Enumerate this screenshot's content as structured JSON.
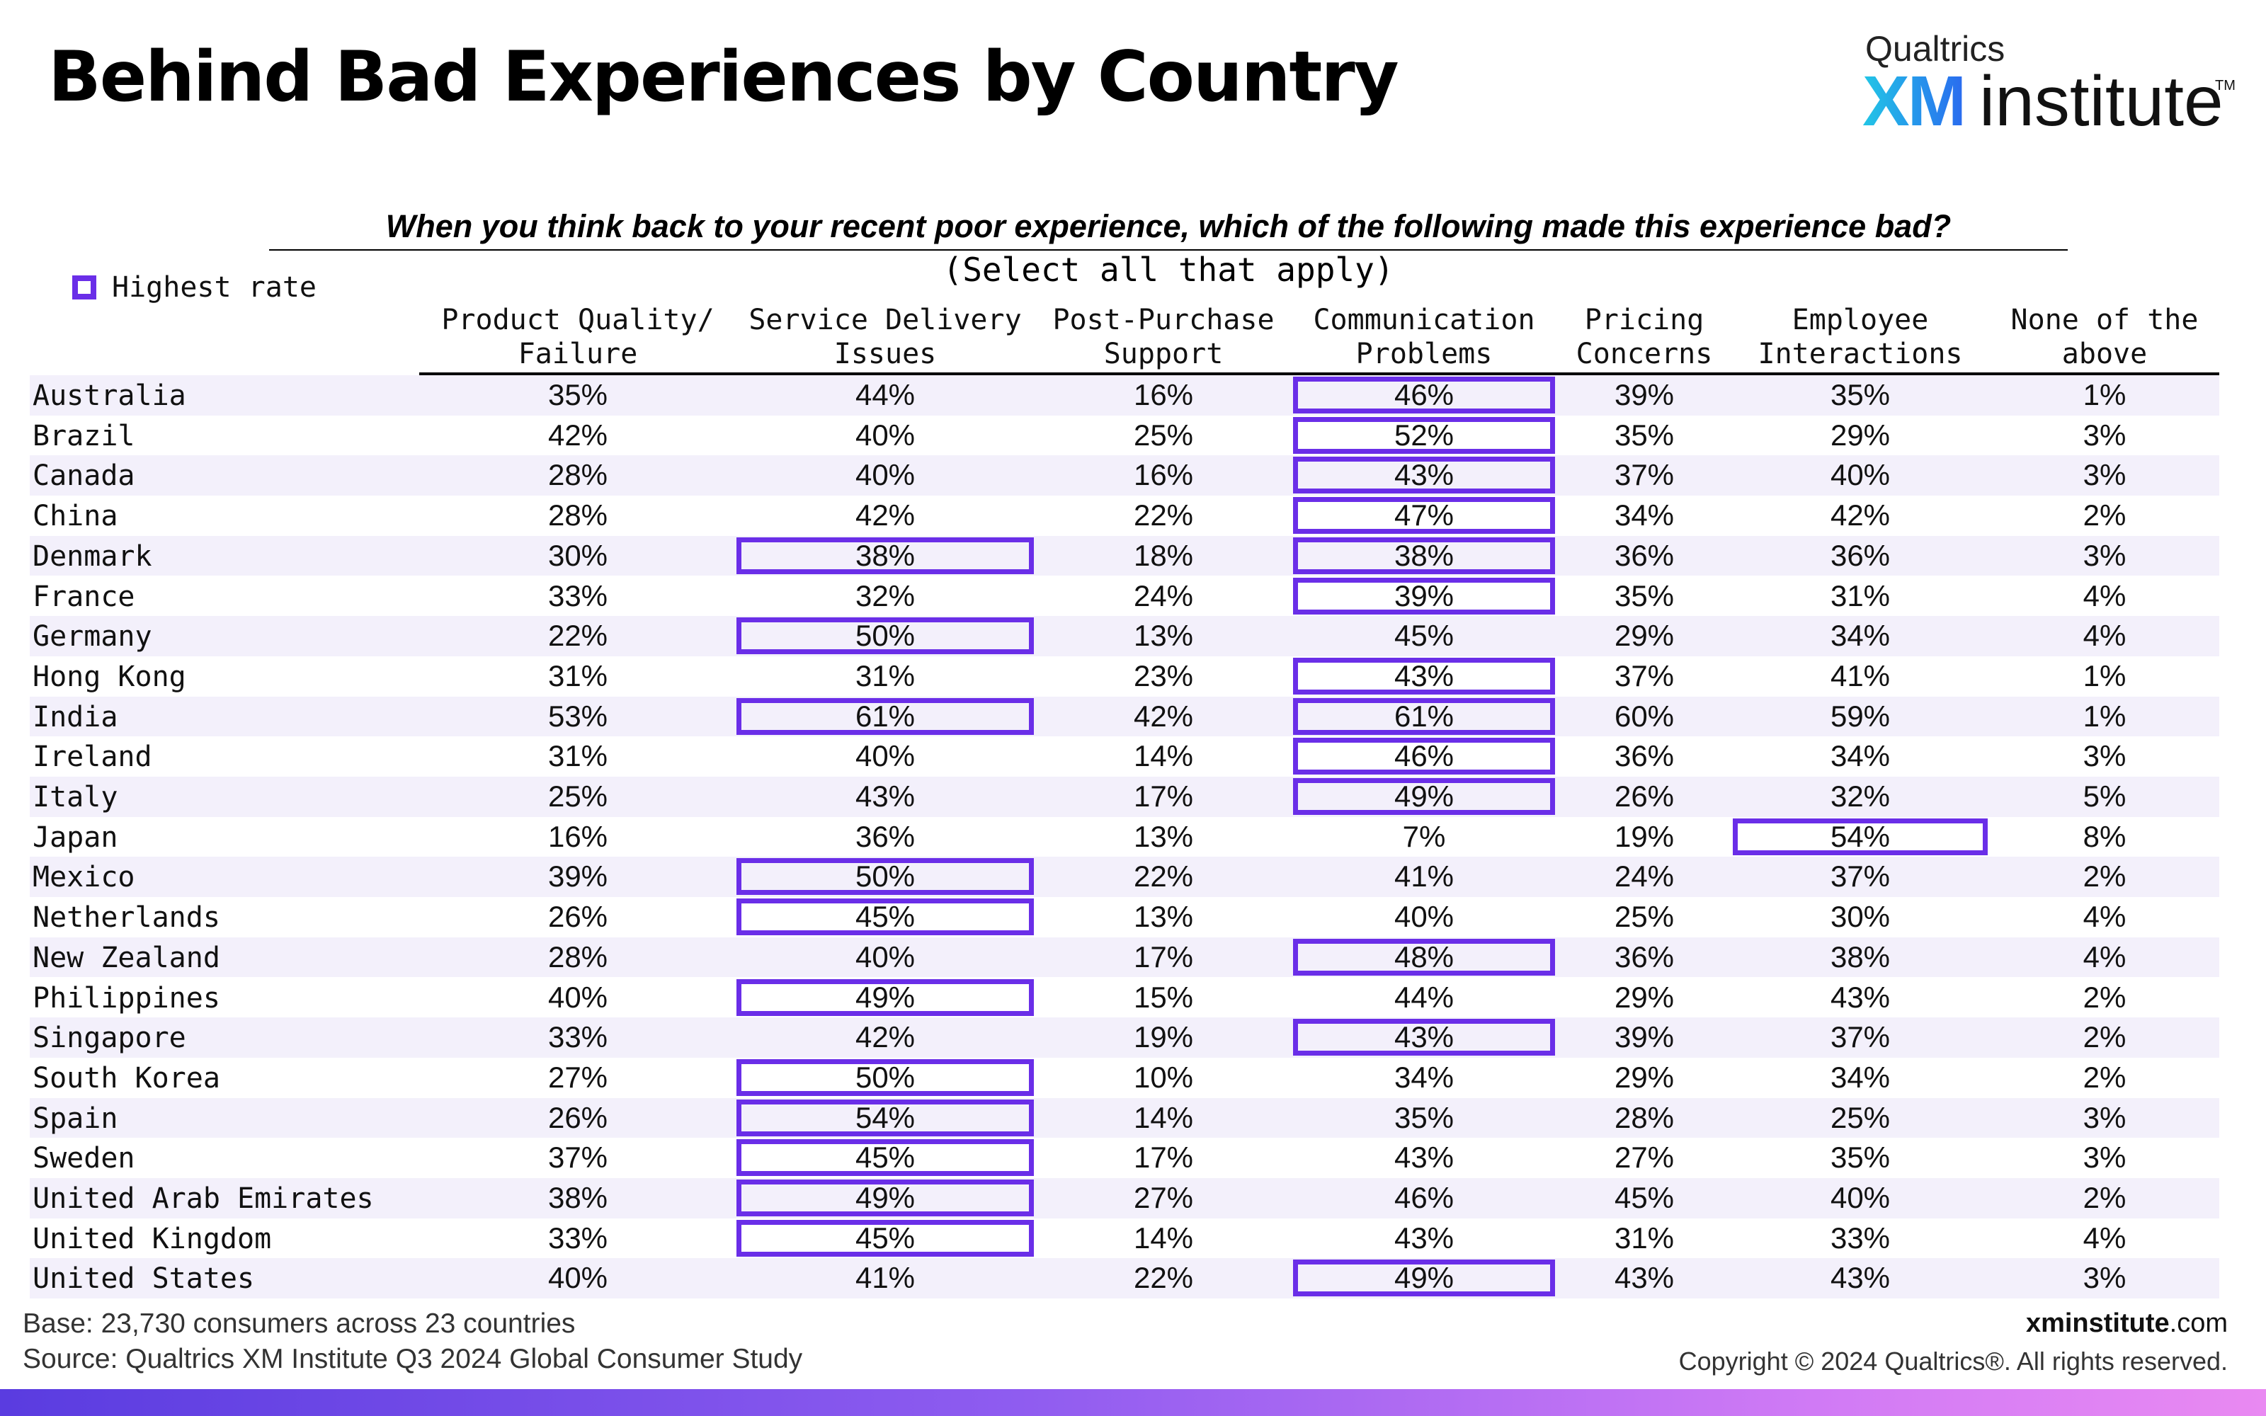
{
  "header": {
    "title": "Behind Bad Experiences by Country",
    "logo": {
      "top": "Qualtrics",
      "xm": "XM",
      "institute": "institute",
      "tm": "TM"
    }
  },
  "colors": {
    "highlight": "#6a2ee8",
    "row_shade": "#f3f0fb",
    "logo_gradient": [
      "#22c6e6",
      "#2a6bef"
    ]
  },
  "question": {
    "text": "When you think back to your recent poor experience, which of the following made this experience bad?",
    "sub": "(Select all that apply)"
  },
  "legend": {
    "label": "Highest rate"
  },
  "footer": {
    "base": "Base: 23,730 consumers across 23 countries",
    "source": "Source: Qualtrics XM Institute Q3 2024 Global Consumer Study",
    "site_bold": "xminstitute",
    "site_rest": ".com",
    "copyright": "Copyright © 2024 Qualtrics®. All rights reserved."
  },
  "chart_data": {
    "type": "table",
    "columns": [
      "Product Quality/\nFailure",
      "Service Delivery\nIssues",
      "Post-Purchase\nSupport",
      "Communication\nProblems",
      "Pricing\nConcerns",
      "Employee\nInteractions",
      "None of the\nabove"
    ],
    "rows": [
      {
        "country": "Australia",
        "values": [
          "35%",
          "44%",
          "16%",
          "46%",
          "39%",
          "35%",
          "1%"
        ],
        "highlight": [
          3
        ]
      },
      {
        "country": "Brazil",
        "values": [
          "42%",
          "40%",
          "25%",
          "52%",
          "35%",
          "29%",
          "3%"
        ],
        "highlight": [
          3
        ]
      },
      {
        "country": "Canada",
        "values": [
          "28%",
          "40%",
          "16%",
          "43%",
          "37%",
          "40%",
          "3%"
        ],
        "highlight": [
          3
        ]
      },
      {
        "country": "China",
        "values": [
          "28%",
          "42%",
          "22%",
          "47%",
          "34%",
          "42%",
          "2%"
        ],
        "highlight": [
          3
        ]
      },
      {
        "country": "Denmark",
        "values": [
          "30%",
          "38%",
          "18%",
          "38%",
          "36%",
          "36%",
          "3%"
        ],
        "highlight": [
          1,
          3
        ]
      },
      {
        "country": "France",
        "values": [
          "33%",
          "32%",
          "24%",
          "39%",
          "35%",
          "31%",
          "4%"
        ],
        "highlight": [
          3
        ]
      },
      {
        "country": "Germany",
        "values": [
          "22%",
          "50%",
          "13%",
          "45%",
          "29%",
          "34%",
          "4%"
        ],
        "highlight": [
          1
        ]
      },
      {
        "country": "Hong Kong",
        "values": [
          "31%",
          "31%",
          "23%",
          "43%",
          "37%",
          "41%",
          "1%"
        ],
        "highlight": [
          3
        ]
      },
      {
        "country": "India",
        "values": [
          "53%",
          "61%",
          "42%",
          "61%",
          "60%",
          "59%",
          "1%"
        ],
        "highlight": [
          1,
          3
        ]
      },
      {
        "country": "Ireland",
        "values": [
          "31%",
          "40%",
          "14%",
          "46%",
          "36%",
          "34%",
          "3%"
        ],
        "highlight": [
          3
        ]
      },
      {
        "country": "Italy",
        "values": [
          "25%",
          "43%",
          "17%",
          "49%",
          "26%",
          "32%",
          "5%"
        ],
        "highlight": [
          3
        ]
      },
      {
        "country": "Japan",
        "values": [
          "16%",
          "36%",
          "13%",
          "7%",
          "19%",
          "54%",
          "8%"
        ],
        "highlight": [
          5
        ]
      },
      {
        "country": "Mexico",
        "values": [
          "39%",
          "50%",
          "22%",
          "41%",
          "24%",
          "37%",
          "2%"
        ],
        "highlight": [
          1
        ]
      },
      {
        "country": "Netherlands",
        "values": [
          "26%",
          "45%",
          "13%",
          "40%",
          "25%",
          "30%",
          "4%"
        ],
        "highlight": [
          1
        ]
      },
      {
        "country": "New Zealand",
        "values": [
          "28%",
          "40%",
          "17%",
          "48%",
          "36%",
          "38%",
          "4%"
        ],
        "highlight": [
          3
        ]
      },
      {
        "country": "Philippines",
        "values": [
          "40%",
          "49%",
          "15%",
          "44%",
          "29%",
          "43%",
          "2%"
        ],
        "highlight": [
          1
        ]
      },
      {
        "country": "Singapore",
        "values": [
          "33%",
          "42%",
          "19%",
          "43%",
          "39%",
          "37%",
          "2%"
        ],
        "highlight": [
          3
        ]
      },
      {
        "country": "South Korea",
        "values": [
          "27%",
          "50%",
          "10%",
          "34%",
          "29%",
          "34%",
          "2%"
        ],
        "highlight": [
          1
        ]
      },
      {
        "country": "Spain",
        "values": [
          "26%",
          "54%",
          "14%",
          "35%",
          "28%",
          "25%",
          "3%"
        ],
        "highlight": [
          1
        ]
      },
      {
        "country": "Sweden",
        "values": [
          "37%",
          "45%",
          "17%",
          "43%",
          "27%",
          "35%",
          "3%"
        ],
        "highlight": [
          1
        ]
      },
      {
        "country": "United Arab Emirates",
        "values": [
          "38%",
          "49%",
          "27%",
          "46%",
          "45%",
          "40%",
          "2%"
        ],
        "highlight": [
          1
        ]
      },
      {
        "country": "United Kingdom",
        "values": [
          "33%",
          "45%",
          "14%",
          "43%",
          "31%",
          "33%",
          "4%"
        ],
        "highlight": [
          1
        ]
      },
      {
        "country": "United States",
        "values": [
          "40%",
          "41%",
          "22%",
          "49%",
          "43%",
          "43%",
          "3%"
        ],
        "highlight": [
          3
        ]
      }
    ]
  }
}
